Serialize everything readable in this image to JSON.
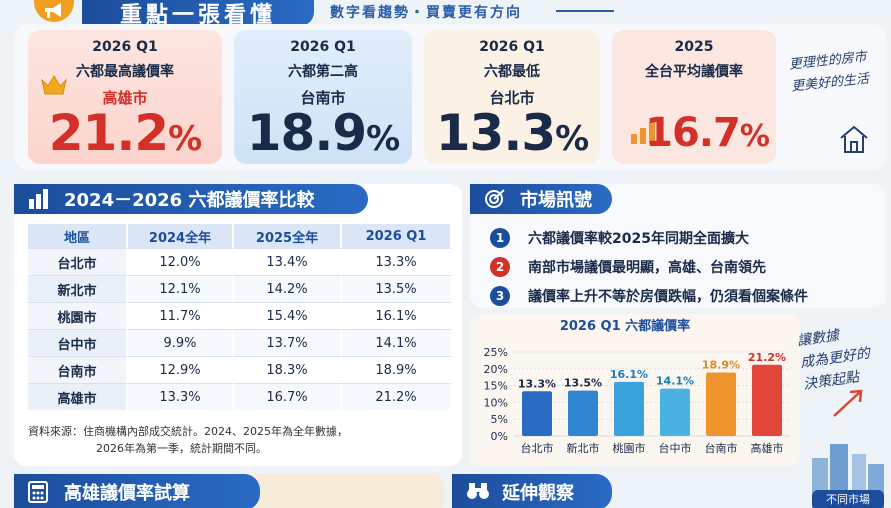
{
  "header": {
    "title": "重點一張看懂",
    "subtitle": "數字看趨勢・買賣更有方向"
  },
  "cards": [
    {
      "period": "2026 Q1",
      "desc": "六都最高議價率",
      "city": "高雄市",
      "value": "21.2",
      "unit": "%",
      "color": "#d4302a"
    },
    {
      "period": "2026 Q1",
      "desc": "六都第二高",
      "city": "台南市",
      "value": "18.9",
      "unit": "%",
      "color": "#1a2b4a"
    },
    {
      "period": "2026 Q1",
      "desc": "六都最低",
      "city": "台北市",
      "value": "13.3",
      "unit": "%",
      "color": "#1a2b4a"
    },
    {
      "period": "2025",
      "desc": "全台平均議價率",
      "city": "",
      "value": "16.7",
      "unit": "%",
      "color": "#d4302a"
    }
  ],
  "handwriting_top": [
    "更理性的房市",
    "更美好的生活"
  ],
  "comparison": {
    "title": "2024－2026 六都議價率比較",
    "columns": [
      "地區",
      "2024全年",
      "2025全年",
      "2026 Q1"
    ],
    "rows": [
      [
        "台北市",
        "12.0%",
        "13.4%",
        "13.3%"
      ],
      [
        "新北市",
        "12.1%",
        "14.2%",
        "13.5%"
      ],
      [
        "桃園市",
        "11.7%",
        "15.4%",
        "16.1%"
      ],
      [
        "台中市",
        "9.9%",
        "13.7%",
        "14.1%"
      ],
      [
        "台南市",
        "12.9%",
        "18.3%",
        "18.9%"
      ],
      [
        "高雄市",
        "13.3%",
        "16.7%",
        "21.2%"
      ]
    ],
    "note_line1": "資料來源：住商機構內部成交統計。2024、2025年為全年數據，",
    "note_line2": "2026年為第一季，統計期間不同。"
  },
  "signals": {
    "title": "市場訊號",
    "items": [
      {
        "n": "1",
        "text": "六都議價率較2025年同期全面擴大",
        "color": "#1c4d9c"
      },
      {
        "n": "2",
        "text": "南部市場議價最明顯，高雄、台南領先",
        "color": "#d4302a"
      },
      {
        "n": "3",
        "text": "議價率上升不等於房價跌幅，仍須看個案條件",
        "color": "#1c4d9c"
      }
    ]
  },
  "chart_data": {
    "type": "bar",
    "title": "2026 Q1 六都議價率",
    "categories": [
      "台北市",
      "新北市",
      "桃園市",
      "台中市",
      "台南市",
      "高雄市"
    ],
    "values": [
      13.3,
      13.5,
      16.1,
      14.1,
      18.9,
      21.2
    ],
    "value_labels": [
      "13.3%",
      "13.5%",
      "16.1%",
      "14.1%",
      "18.9%",
      "21.2%"
    ],
    "label_colors": [
      "#1a2b4a",
      "#1a2b4a",
      "#1f7ab8",
      "#1f7ab8",
      "#e08a1e",
      "#d4302a"
    ],
    "bar_colors": [
      "#2a6bc4",
      "#2f85cf",
      "#3aa3dc",
      "#4ab3e4",
      "#f0952e",
      "#e2453a"
    ],
    "yticks": [
      "25%",
      "20%",
      "15%",
      "10%",
      "5%",
      "0%"
    ],
    "ylim": [
      0,
      25
    ],
    "grid": true,
    "xlabel": "",
    "ylabel": ""
  },
  "handwriting_chart": [
    "讓數據",
    "成為更好的",
    "決策起點"
  ],
  "bottom": {
    "calc_title": "高雄議價率試算",
    "ext_title": "延伸觀察",
    "corner": "不同市場"
  }
}
